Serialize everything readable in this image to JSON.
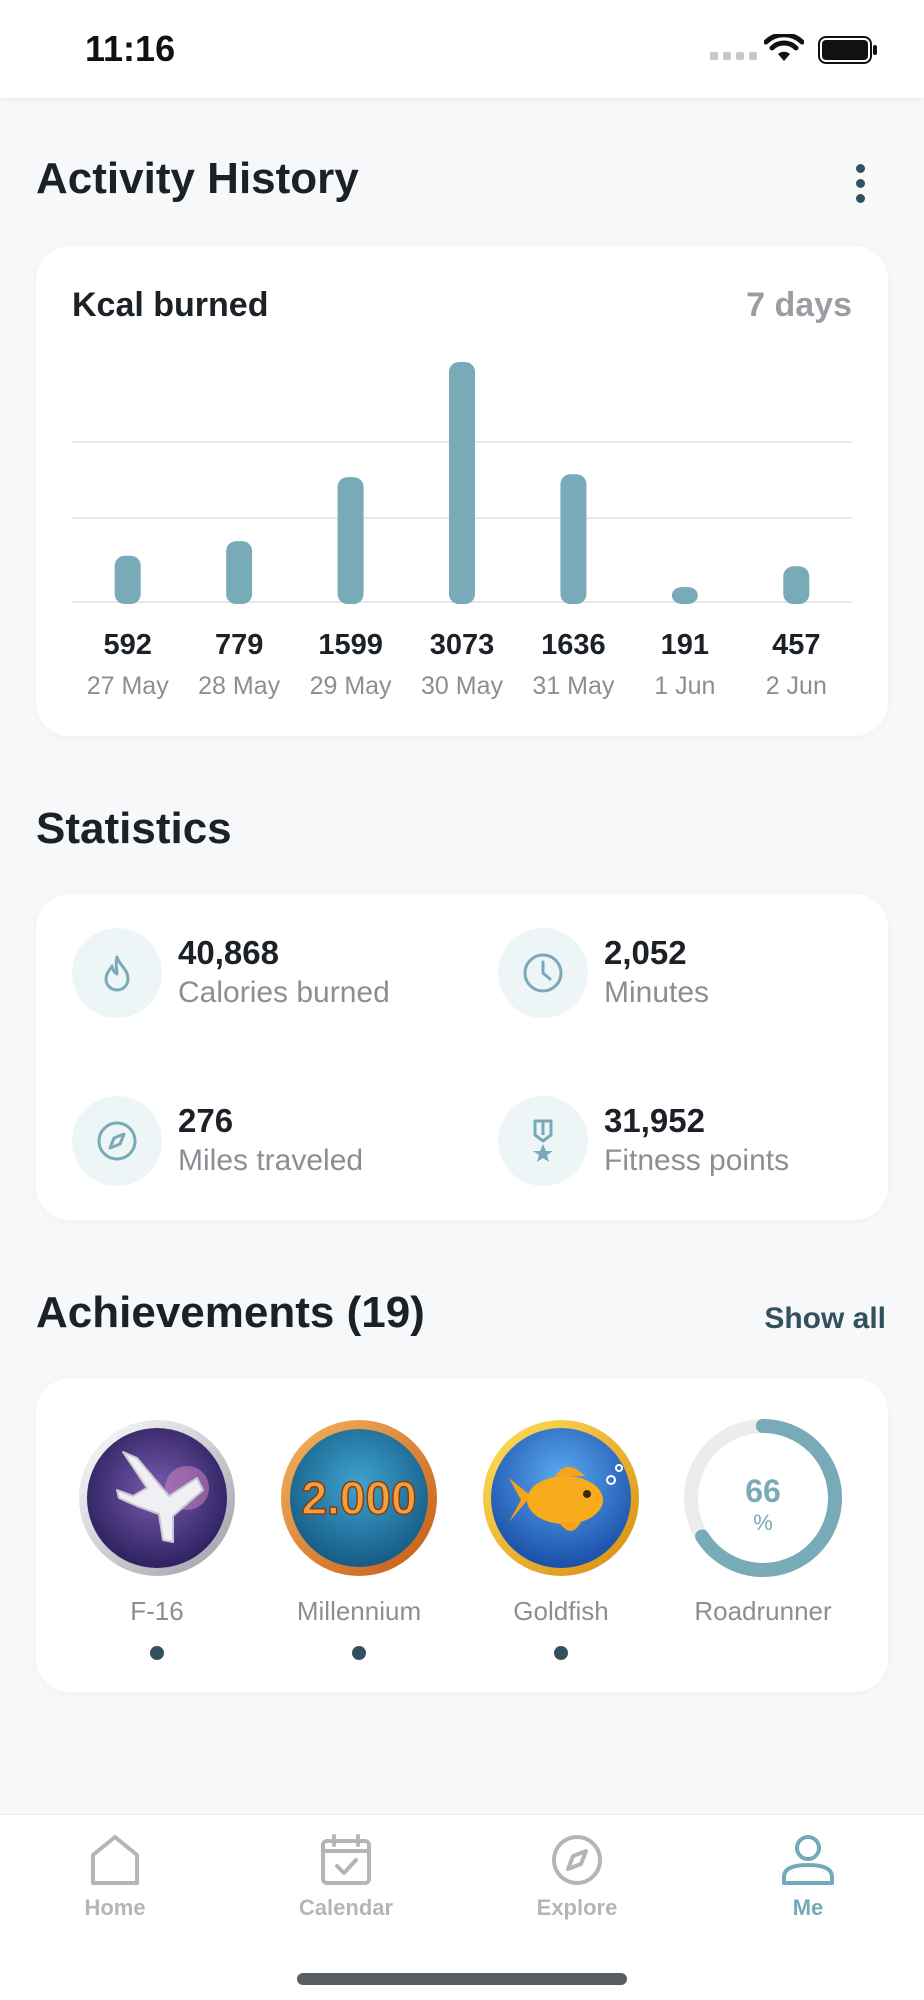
{
  "status_bar": {
    "time": "11:16"
  },
  "header": {
    "title": "Activity History"
  },
  "activity_chart": {
    "title": "Kcal burned",
    "period": "7 days"
  },
  "chart_data": {
    "type": "bar",
    "title": "Kcal burned",
    "categories": [
      "27 May",
      "28 May",
      "29 May",
      "30 May",
      "31 May",
      "1 Jun",
      "2 Jun"
    ],
    "values": [
      592,
      779,
      1599,
      3073,
      1636,
      191,
      457
    ],
    "value_labels": [
      "592",
      "779",
      "1599",
      "3073",
      "1636",
      "191",
      "457"
    ],
    "ylim": [
      0,
      3073
    ],
    "grid": true,
    "color": "#78aab8"
  },
  "statistics": {
    "title": "Statistics",
    "items": [
      {
        "value": "40,868",
        "label": "Calories burned",
        "icon": "flame-icon"
      },
      {
        "value": "2,052",
        "label": "Minutes",
        "icon": "clock-icon"
      },
      {
        "value": "276",
        "label": "Miles traveled",
        "icon": "compass-icon"
      },
      {
        "value": "31,952",
        "label": "Fitness points",
        "icon": "medal-icon"
      }
    ]
  },
  "achievements": {
    "title": "Achievements (19)",
    "show_all": "Show all",
    "badges": [
      {
        "label": "F-16",
        "icon": "jet-badge-icon",
        "dot": true
      },
      {
        "label": "Millennium",
        "icon": "millennium-badge-icon",
        "badge_text": "2.000",
        "dot": true
      },
      {
        "label": "Goldfish",
        "icon": "goldfish-badge-icon",
        "dot": true
      },
      {
        "label": "Roadrunner",
        "icon": "progress-ring",
        "progress_value": "66",
        "progress_unit": "%",
        "progress": 0.66,
        "dot": false
      }
    ]
  },
  "tab_bar": {
    "tabs": [
      {
        "label": "Home",
        "icon": "home-icon",
        "active": false
      },
      {
        "label": "Calendar",
        "icon": "calendar-icon",
        "active": false
      },
      {
        "label": "Explore",
        "icon": "compass-icon",
        "active": false
      },
      {
        "label": "Me",
        "icon": "profile-icon",
        "active": true
      }
    ]
  },
  "colors": {
    "accent": "#78aab8",
    "dark": "#33505f",
    "muted": "#8a8f94"
  }
}
